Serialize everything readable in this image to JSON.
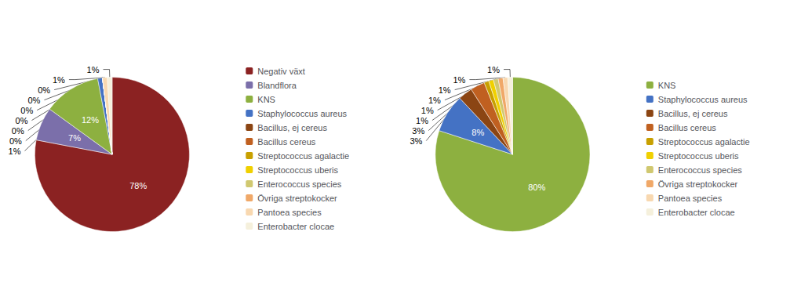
{
  "chart_data": [
    {
      "type": "pie",
      "categories": [
        "Negativ växt",
        "Blandflora",
        "KNS",
        "Staphylococcus aureus",
        "Bacillus, ej cereus",
        "Bacillus cereus",
        "Streptococcus agalactie",
        "Streptococcus uberis",
        "Enterococcus species",
        "Övriga streptokocker",
        "Pantoea species",
        "Enterobacter clocae"
      ],
      "values": [
        78,
        7,
        12,
        1,
        0,
        0,
        0,
        0,
        0,
        0,
        1,
        1
      ],
      "value_labels": [
        "78%",
        "7%",
        "12%",
        "1%",
        "0%",
        "0%",
        "0%",
        "0%",
        "0%",
        "0%",
        "1%",
        "1%"
      ],
      "colors": [
        "#8B2222",
        "#7B6FAA",
        "#8DB040",
        "#4472C4",
        "#8B4513",
        "#C06020",
        "#C8A000",
        "#F0D000",
        "#D0C870",
        "#F0A868",
        "#F8D8B0",
        "#F5F0DC"
      ],
      "legend": "right",
      "data_labels": true
    },
    {
      "type": "pie",
      "categories": [
        "KNS",
        "Staphylococcus aureus",
        "Bacillus, ej cereus",
        "Bacillus cereus",
        "Streptococcus agalactie",
        "Streptococcus uberis",
        "Enterococcus species",
        "Övriga streptokocker",
        "Pantoea species",
        "Enterobacter clocae"
      ],
      "values": [
        80,
        8,
        3,
        3,
        1,
        1,
        1,
        1,
        1,
        1
      ],
      "value_labels": [
        "80%",
        "8%",
        "3%",
        "3%",
        "1%",
        "1%",
        "1%",
        "1%",
        "1%",
        "1%"
      ],
      "colors": [
        "#8DB040",
        "#4472C4",
        "#8B4513",
        "#C06020",
        "#C8A000",
        "#F0D000",
        "#D0C870",
        "#F0A868",
        "#F8D8B0",
        "#F5F0DC"
      ],
      "legend": "right",
      "data_labels": true
    }
  ]
}
